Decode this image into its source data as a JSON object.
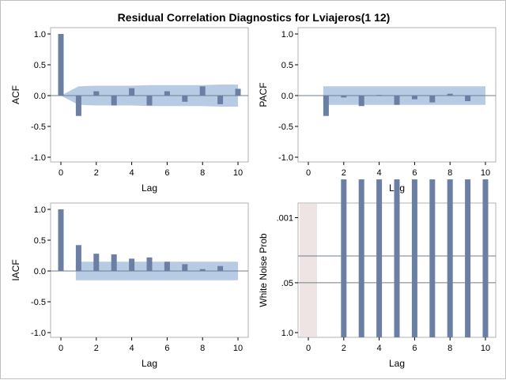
{
  "title": "Residual Correlation Diagnostics for Lviajeros(1 12)",
  "colors": {
    "bar": "#6a7fa3",
    "band": "#b8cbe4",
    "zero_line": "#6e7f8c",
    "frame": "#b0b0b0",
    "lag0_band": "#efe4e4"
  },
  "chart_data": [
    {
      "type": "bar",
      "name": "acf",
      "xlabel": "Lag",
      "ylabel": "ACF",
      "xlim": [
        0,
        10
      ],
      "ylim": [
        -1,
        1
      ],
      "x_ticks": [
        "0",
        "2",
        "4",
        "6",
        "8",
        "10"
      ],
      "y_ticks": [
        "1.0",
        "0.5",
        "0.0",
        "-0.5",
        "-1.0"
      ],
      "lags": [
        0,
        1,
        2,
        3,
        4,
        5,
        6,
        7,
        8,
        9,
        10
      ],
      "values": [
        1.0,
        -0.33,
        0.07,
        -0.16,
        0.12,
        -0.16,
        0.07,
        -0.1,
        0.15,
        -0.14,
        0.11
      ],
      "confidence_band": {
        "lags": [
          0,
          1,
          2,
          3,
          4,
          5,
          6,
          7,
          8,
          9,
          10
        ],
        "upper": [
          0.0,
          0.15,
          0.16,
          0.16,
          0.16,
          0.17,
          0.17,
          0.17,
          0.17,
          0.18,
          0.18
        ],
        "lower": [
          0.0,
          -0.15,
          -0.16,
          -0.16,
          -0.16,
          -0.17,
          -0.17,
          -0.17,
          -0.17,
          -0.18,
          -0.18
        ]
      }
    },
    {
      "type": "bar",
      "name": "pacf",
      "xlabel": "Lag",
      "ylabel": "PACF",
      "xlim": [
        0,
        10
      ],
      "ylim": [
        -1,
        1
      ],
      "x_ticks": [
        "0",
        "2",
        "4",
        "6",
        "8",
        "10"
      ],
      "y_ticks": [
        "1.0",
        "0.5",
        "0.0",
        "-0.5",
        "-1.0"
      ],
      "lags": [
        1,
        2,
        3,
        4,
        5,
        6,
        7,
        8,
        9
      ],
      "values": [
        -0.33,
        -0.03,
        -0.17,
        0.01,
        -0.15,
        -0.06,
        -0.11,
        0.03,
        -0.09
      ],
      "confidence_band": {
        "from_lag": 1,
        "to_lag": 10,
        "upper": 0.15,
        "lower": -0.15
      }
    },
    {
      "type": "bar",
      "name": "iacf",
      "xlabel": "Lag",
      "ylabel": "IACF",
      "xlim": [
        0,
        10
      ],
      "ylim": [
        -1,
        1
      ],
      "x_ticks": [
        "0",
        "2",
        "4",
        "6",
        "8",
        "10"
      ],
      "y_ticks": [
        "1.0",
        "0.5",
        "0.0",
        "-0.5",
        "-1.0"
      ],
      "lags": [
        0,
        1,
        2,
        3,
        4,
        5,
        6,
        7,
        8,
        9
      ],
      "values": [
        1.0,
        0.42,
        0.28,
        0.27,
        0.2,
        0.22,
        0.15,
        0.11,
        0.03,
        0.08
      ],
      "confidence_band": {
        "from_lag": 1,
        "to_lag": 10,
        "upper": 0.15,
        "lower": -0.15
      }
    },
    {
      "type": "bar",
      "name": "white-noise",
      "xlabel": "Lag",
      "ylabel": "White Noise Prob",
      "xlim": [
        0,
        10
      ],
      "scale": "-log10(p)",
      "x_ticks": [
        "0",
        "2",
        "4",
        "6",
        "8",
        "10"
      ],
      "y_ticks": [
        ".001",
        ".05",
        "1.0"
      ],
      "y_tick_values": [
        0.001,
        0.05,
        1.0
      ],
      "reference_lines": [
        0.01,
        0.05
      ],
      "lags": [
        2,
        3,
        4,
        5,
        6,
        7,
        8,
        9,
        10
      ],
      "p_values": [
        0.0001,
        0.0001,
        0.0001,
        0.0001,
        0.0001,
        0.0001,
        0.0001,
        0.0001,
        0.0001
      ]
    }
  ]
}
